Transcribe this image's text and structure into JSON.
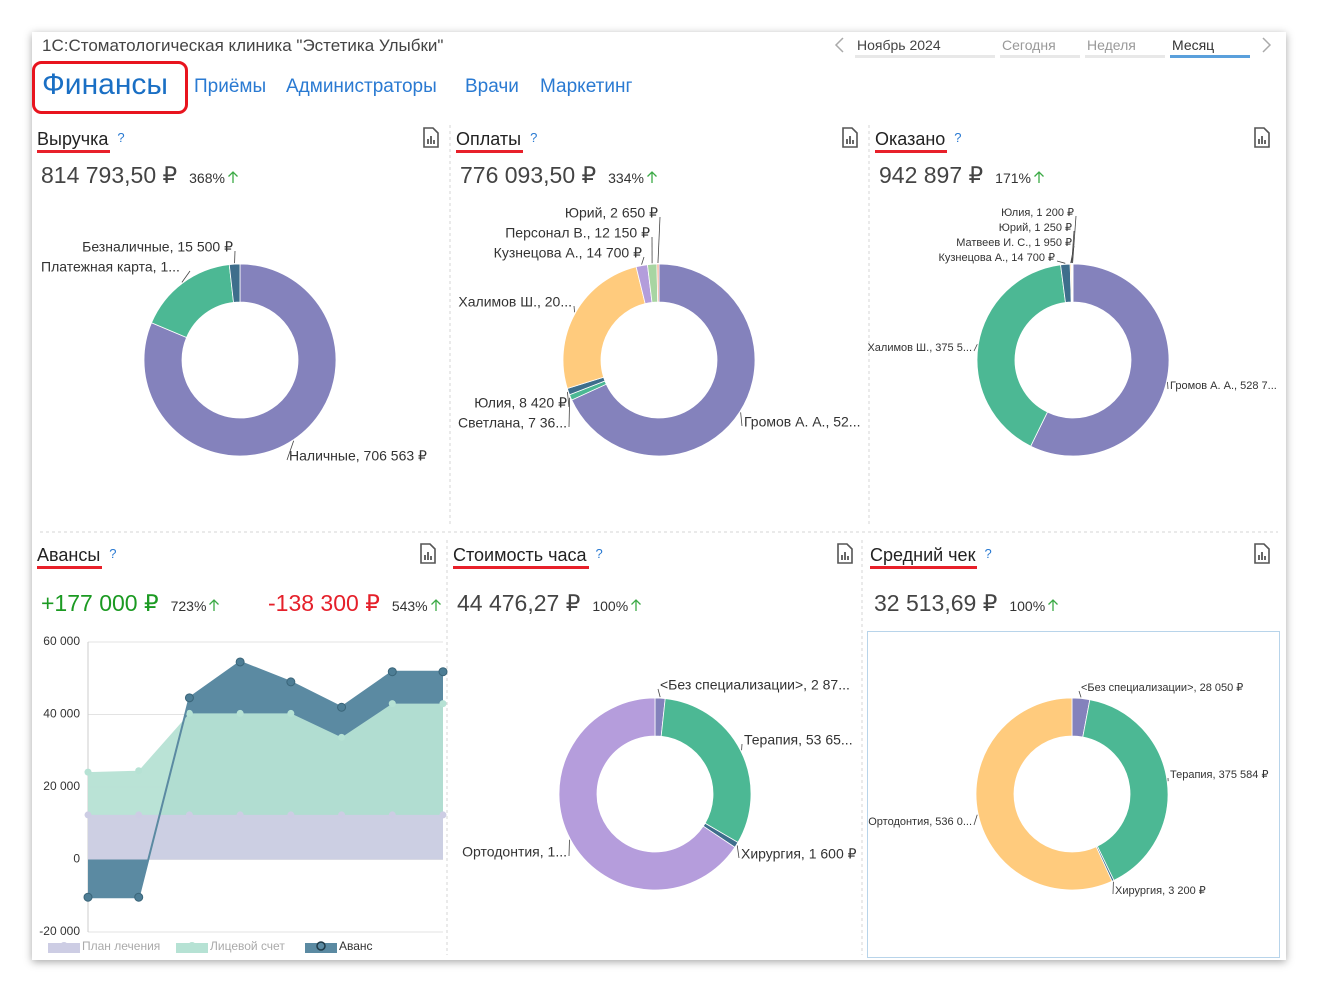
{
  "header": {
    "title": "1С:Стоматологическая клиника \"Эстетика Улыбки\"",
    "period": "Ноябрь 2024",
    "ranges": [
      "Сегодня",
      "Неделя",
      "Месяц"
    ]
  },
  "tabs": [
    "Финансы",
    "Приёмы",
    "Администраторы",
    "Врачи",
    "Маркетинг"
  ],
  "help": "?",
  "chart_data": [
    {
      "type": "donut",
      "title": "Выручка",
      "kpis": [
        {
          "value": "814 793,50 ₽",
          "change": "368%"
        }
      ],
      "categories": [
        "Наличные, 706 563 ₽",
        "Платежная карта, 1...",
        "Безналичные, 15 500 ₽"
      ],
      "values": [
        706563,
        146600,
        15500
      ],
      "colors": [
        "#8482bc",
        "#4cb894",
        "#3e6e8c"
      ]
    },
    {
      "type": "donut",
      "title": "Оплаты",
      "kpis": [
        {
          "value": "776 093,50 ₽",
          "change": "334%"
        }
      ],
      "categories": [
        "Громов А. А., 52...",
        "Светлана, 7 36...",
        "Юлия, 8 420 ₽",
        "Халимов Ш., 20...",
        "Кузнецова А., 14 700 ₽",
        "Персонал В., 12 150 ₽",
        "Юрий, 2 650 ₽"
      ],
      "values": [
        525000,
        7360,
        8420,
        200000,
        14700,
        12150,
        2650
      ],
      "colors": [
        "#8482bc",
        "#4cb894",
        "#3e6e8c",
        "#ffcb7d",
        "#b39ddb",
        "#a8d5a2",
        "#f4a58a"
      ]
    },
    {
      "type": "donut",
      "title": "Оказано",
      "kpis": [
        {
          "value": "942 897 ₽",
          "change": "171%"
        }
      ],
      "categories": [
        "Громов А. А., 528 7...",
        "Халимов Ш., 375 5...",
        "Кузнецова А., 14 700 ₽",
        "Матвеев И. С., 1 950 ₽",
        "Юрий, 1 250 ₽",
        "Юлия, 1 200 ₽"
      ],
      "values": [
        528700,
        375500,
        14700,
        1950,
        1250,
        1200
      ],
      "colors": [
        "#8482bc",
        "#4cb894",
        "#3e6e8c",
        "#ffcb7d",
        "#b39ddb",
        "#a8d5a2"
      ]
    },
    {
      "type": "area",
      "title": "Авансы",
      "kpis": [
        {
          "value": "+177 000 ₽",
          "change": "723%"
        },
        {
          "value": "-138 300 ₽",
          "change": "543%"
        }
      ],
      "categories": [
        null,
        null,
        null,
        null,
        null,
        null,
        null,
        null
      ],
      "ylim": [
        -20000,
        60000
      ],
      "yticks": [
        {
          "value": -20000,
          "label": "-20 000"
        },
        0,
        {
          "value": 20000,
          "label": "20 000"
        },
        {
          "value": 40000,
          "label": "40 000"
        },
        {
          "value": 60000,
          "label": "60 000"
        }
      ],
      "grid": true,
      "series": [
        {
          "name": "План лечения",
          "color": "#cdcde4",
          "values": [
            12300,
            12300,
            12300,
            12300,
            12300,
            12300,
            12300,
            12300
          ]
        },
        {
          "name": "Лицевой счет",
          "color": "#b6e2d4",
          "values": [
            24100,
            24500,
            40300,
            40300,
            40300,
            33700,
            43000,
            43000
          ]
        },
        {
          "name": "Аванс",
          "color": "#5b8aa2",
          "values": [
            -10400,
            -10400,
            44600,
            54500,
            49000,
            42000,
            51800,
            51800
          ]
        }
      ]
    },
    {
      "type": "donut",
      "title": "Стоимость часа",
      "kpis": [
        {
          "value": "44 476,27 ₽",
          "change": "100%"
        }
      ],
      "categories": [
        "<Без специализации>, 2 87...",
        "Терапия, 53 65...",
        "Хирургия, 1 600 ₽",
        "Ортодонтия, 1..."
      ],
      "values": [
        2870,
        53650,
        1600,
        111000
      ],
      "colors": [
        "#8482bc",
        "#4cb894",
        "#3e6e8c",
        "#b59ddc"
      ]
    },
    {
      "type": "donut",
      "title": "Средний чек",
      "kpis": [
        {
          "value": "32 513,69 ₽",
          "change": "100%"
        }
      ],
      "categories": [
        "<Без специализации>, 28 050 ₽",
        "Терапия, 375 584 ₽",
        "Хирургия, 3 200 ₽",
        "Ортодонтия, 536 0..."
      ],
      "values": [
        28050,
        375584,
        3200,
        536000
      ],
      "colors": [
        "#8482bc",
        "#4cb894",
        "#3e6e8c",
        "#ffcb7d"
      ]
    }
  ]
}
